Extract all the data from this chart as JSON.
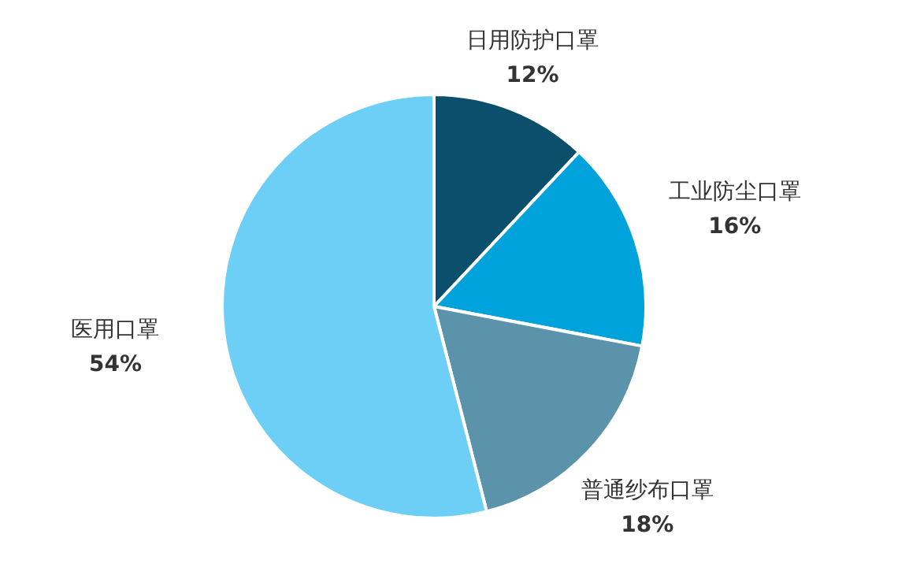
{
  "chart_data": {
    "type": "pie",
    "categories": [
      "日用防护口罩",
      "工业防尘口罩",
      "普通纱布口罩",
      "医用口罩"
    ],
    "values": [
      12,
      16,
      18,
      54
    ],
    "value_labels": [
      "12%",
      "16%",
      "18%",
      "54%"
    ],
    "colors": [
      "#0b4f6c",
      "#00a2dc",
      "#5a93aa",
      "#6dcff6"
    ],
    "legend": false
  }
}
